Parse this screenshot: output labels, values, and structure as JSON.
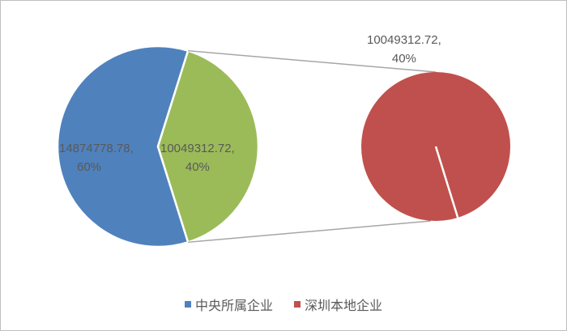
{
  "chart_data": {
    "type": "pie-of-pie",
    "categories": [
      "中央所属企业",
      "深圳本地企业"
    ],
    "values": [
      14874778.78,
      10049312.72
    ],
    "percents": [
      "60%",
      "40%"
    ],
    "colors": [
      "#4f81bd",
      "#9bbb59",
      "#c0504d"
    ],
    "legend_colors": [
      "#4f81bd",
      "#c0504d"
    ],
    "data_labels": {
      "main_primary": {
        "value": "14874778.78,",
        "percent": "60%"
      },
      "main_other": {
        "value": "10049312.72,",
        "percent": "40%"
      },
      "secondary": {
        "value": "10049312.72,",
        "percent": "40%"
      }
    },
    "legend_position": "bottom"
  }
}
